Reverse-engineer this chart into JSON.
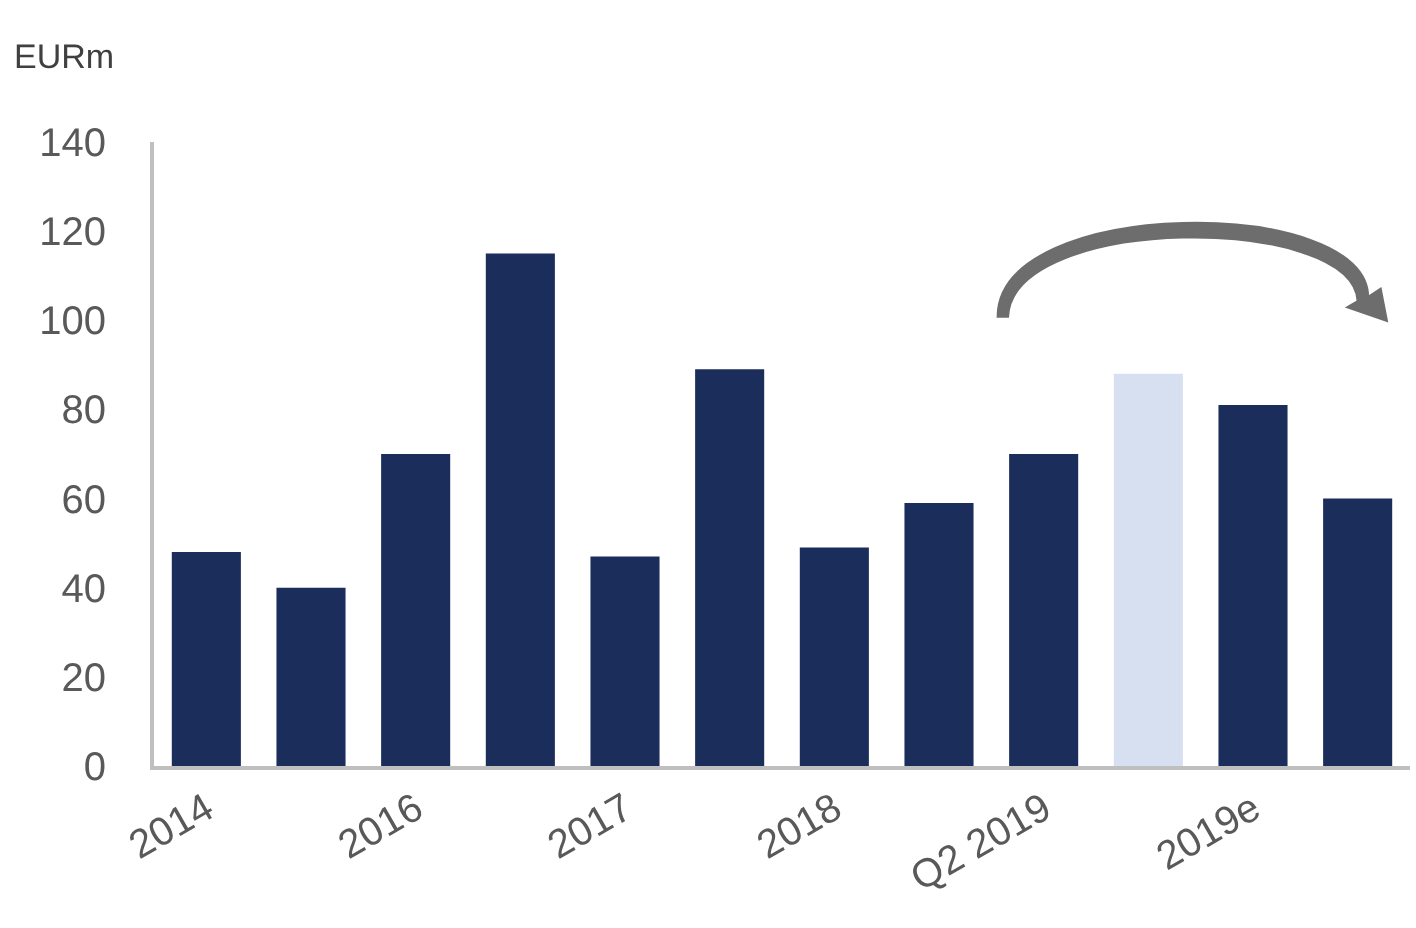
{
  "chart_data": {
    "type": "bar",
    "ylabel": "EURm",
    "categories": [
      "2014",
      null,
      "2016",
      null,
      "2017",
      null,
      "2018",
      null,
      "Q2 2019",
      null,
      "2019e",
      null
    ],
    "values": [
      48,
      40,
      70,
      115,
      47,
      89,
      49,
      59,
      70,
      88,
      81,
      60
    ],
    "colors": [
      "#1b2d5b",
      "#1b2d5b",
      "#1b2d5b",
      "#1b2d5b",
      "#1b2d5b",
      "#1b2d5b",
      "#1b2d5b",
      "#1b2d5b",
      "#1b2d5b",
      "#d6e0f0",
      "#1b2d5b",
      "#1b2d5b"
    ],
    "ylim": [
      0,
      140
    ],
    "yticks": [
      0,
      20,
      40,
      60,
      80,
      100,
      120,
      140
    ]
  }
}
